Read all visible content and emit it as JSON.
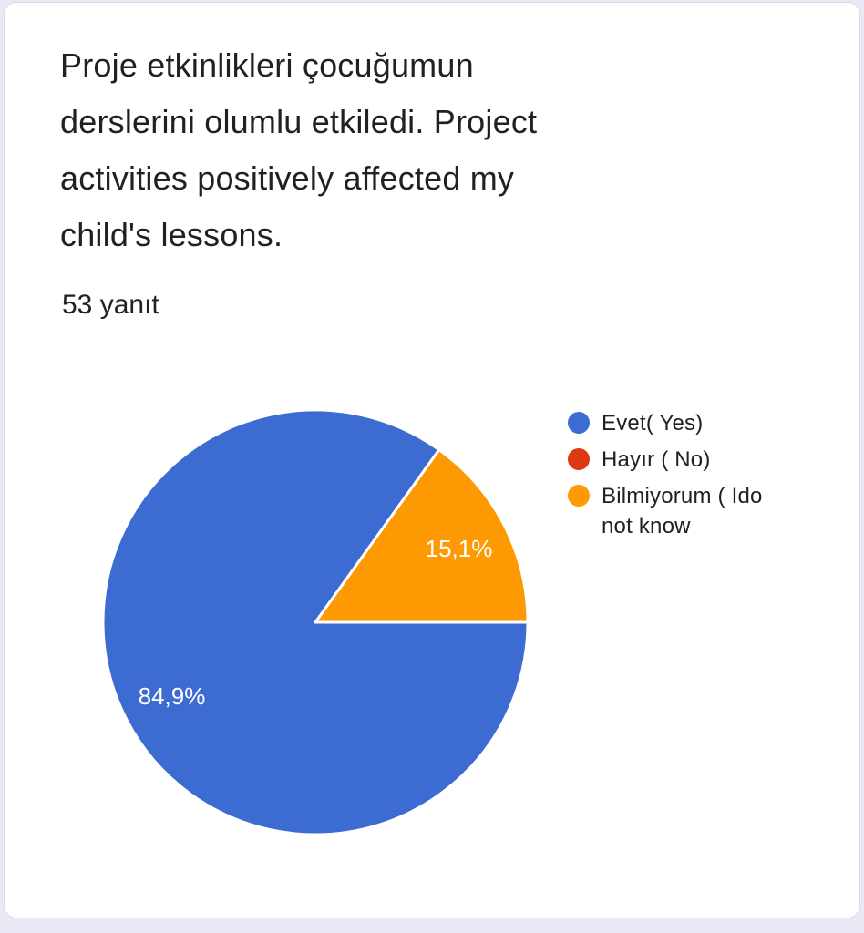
{
  "page": {
    "background_color": "#e9e8f4",
    "card_background_color": "#ffffff",
    "card_border_color": "#d9d8e3"
  },
  "header": {
    "title_lines": [
      "Proje etkinlikleri çocuğumun",
      "derslerini olumlu etkiledi. Project",
      "activities positively affected my",
      "child's lessons."
    ],
    "responses_label": "53 yanıt"
  },
  "chart_data": {
    "type": "pie",
    "title": "Proje etkinlikleri çocuğumun derslerini olumlu etkiledi. Project activities positively affected my child's lessons.",
    "subtitle": "53 yanıt",
    "legend_position": "right",
    "start_angle": "east",
    "direction": "clockwise",
    "label_color": "#ffffff",
    "slice_separator_color": "#ffffff",
    "slices": [
      {
        "label": "Evet( Yes)",
        "legend_lines": [
          "Evet( Yes)"
        ],
        "percent": 84.9,
        "percent_label": "84,9%",
        "color": "#3c6bd2"
      },
      {
        "label": "Hayır ( No)",
        "legend_lines": [
          "Hayır ( No)"
        ],
        "percent": 0,
        "percent_label": "",
        "color": "#dc3912"
      },
      {
        "label": "Bilmiyorum ( Ido not know",
        "legend_lines": [
          "Bilmiyorum ( Ido",
          "not know"
        ],
        "percent": 15.1,
        "percent_label": "15,1%",
        "color": "#fd9902"
      }
    ]
  }
}
